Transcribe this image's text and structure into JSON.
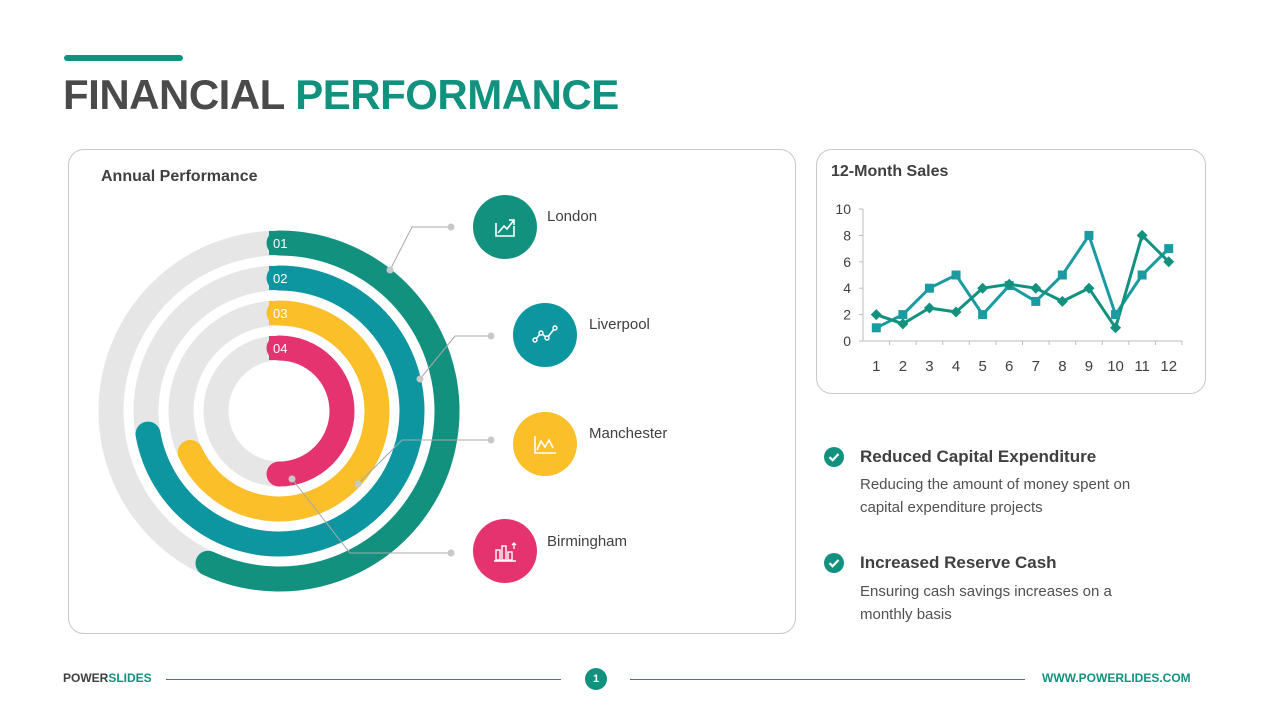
{
  "header": {
    "title_part1": "FINANCIAL",
    "title_part2": "PERFORMANCE"
  },
  "annual": {
    "title": "Annual Performance",
    "rings": [
      {
        "number": "01",
        "city": "London",
        "color": "#13917f",
        "icon": "trend-arrow-icon"
      },
      {
        "number": "02",
        "city": "Liverpool",
        "color": "#0d96a0",
        "icon": "line-graph-icon"
      },
      {
        "number": "03",
        "city": "Manchester",
        "color": "#fbbf2a",
        "icon": "area-chart-icon"
      },
      {
        "number": "04",
        "city": "Birmingham",
        "color": "#e5336f",
        "icon": "bar-chart-icon"
      }
    ],
    "track_color": "#e6e6e6"
  },
  "chart_data": {
    "type": "line",
    "title": "12-Month Sales",
    "x": [
      1,
      2,
      3,
      4,
      5,
      6,
      7,
      8,
      9,
      10,
      11,
      12
    ],
    "ylim": [
      0,
      10
    ],
    "yticks": [
      0,
      2,
      4,
      6,
      8,
      10
    ],
    "grid": false,
    "series": [
      {
        "marker": "square",
        "color": "#1a9ba1",
        "values": [
          1,
          2,
          4,
          5,
          2,
          4.2,
          3,
          5,
          8,
          2,
          5,
          7
        ]
      },
      {
        "marker": "diamond",
        "color": "#13917f",
        "values": [
          2,
          1.3,
          2.5,
          2.2,
          4,
          4.3,
          4,
          3,
          4,
          1,
          8,
          6
        ]
      }
    ]
  },
  "features": [
    {
      "title": "Reduced Capital Expenditure",
      "desc": "Reducing the amount of money spent on capital expenditure projects"
    },
    {
      "title": "Increased Reserve Cash",
      "desc": "Ensuring cash savings increases on a monthly basis"
    }
  ],
  "footer": {
    "brand1": "POWER",
    "brand2": "SLIDES",
    "page": "1",
    "url": "WWW.POWERLIDES.COM"
  },
  "colors": {
    "accent": "#13917f",
    "text": "#404040"
  }
}
